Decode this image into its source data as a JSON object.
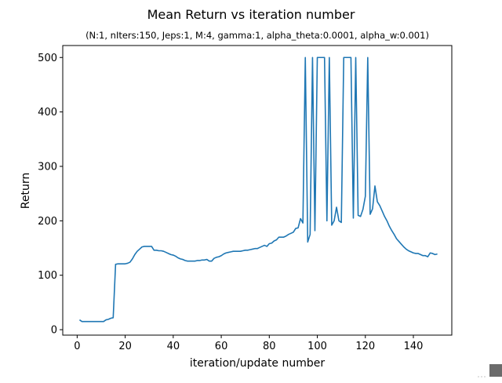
{
  "chart_data": {
    "type": "line",
    "title": "Mean Return vs iteration number",
    "subtitle": "(N:1, nIters:150, Jeps:1, M:4, gamma:1, alpha_theta:0.0001, alpha_w:0.001)",
    "xlabel": "iteration/update number",
    "ylabel": "Return",
    "xlim": [
      -6,
      156
    ],
    "ylim": [
      -10,
      522
    ],
    "xticks": [
      0,
      20,
      40,
      60,
      80,
      100,
      120,
      140
    ],
    "yticks": [
      0,
      100,
      200,
      300,
      400,
      500
    ],
    "grid": false,
    "color": "#1f77b4",
    "series": [
      {
        "x": [
          1,
          2,
          3,
          4,
          5,
          6,
          7,
          8,
          9,
          10,
          11,
          12,
          13,
          14,
          15,
          16,
          17,
          18,
          19,
          20,
          21,
          22,
          23,
          24,
          25,
          26,
          27,
          28,
          29,
          30,
          31,
          32,
          33,
          34,
          35,
          36,
          37,
          38,
          39,
          40,
          41,
          42,
          43,
          44,
          45,
          46,
          47,
          48,
          49,
          50,
          51,
          52,
          53,
          54,
          55,
          56,
          57,
          58,
          59,
          60,
          61,
          62,
          63,
          64,
          65,
          66,
          67,
          68,
          69,
          70,
          71,
          72,
          73,
          74,
          75,
          76,
          77,
          78,
          79,
          80,
          81,
          82,
          83,
          84,
          85,
          86,
          87,
          88,
          89,
          90,
          91,
          92,
          93,
          94,
          95,
          96,
          97,
          98,
          99,
          100,
          101,
          102,
          103,
          104,
          105,
          106,
          107,
          108,
          109,
          110,
          111,
          112,
          113,
          114,
          115,
          116,
          117,
          118,
          119,
          120,
          121,
          122,
          123,
          124,
          125,
          126,
          127,
          128,
          129,
          130,
          131,
          132,
          133,
          134,
          135,
          136,
          137,
          138,
          139,
          140,
          141,
          142,
          143,
          144,
          145,
          146,
          147,
          148,
          149,
          150
        ],
        "y": [
          18,
          15,
          15,
          15,
          15,
          15,
          15,
          15,
          15,
          15,
          15,
          18,
          19,
          21,
          22,
          120,
          121,
          121,
          121,
          121,
          122,
          124,
          130,
          138,
          144,
          148,
          152,
          153,
          153,
          153,
          153,
          146,
          146,
          145,
          145,
          144,
          142,
          140,
          138,
          137,
          135,
          132,
          130,
          129,
          127,
          126,
          126,
          126,
          126,
          127,
          127,
          128,
          128,
          129,
          126,
          126,
          131,
          133,
          134,
          136,
          139,
          141,
          142,
          143,
          144,
          144,
          144,
          144,
          145,
          146,
          146,
          147,
          148,
          149,
          149,
          151,
          153,
          155,
          153,
          158,
          159,
          163,
          165,
          170,
          170,
          170,
          172,
          175,
          177,
          179,
          186,
          187,
          204,
          196,
          500,
          161,
          175,
          500,
          182,
          500,
          500,
          500,
          500,
          200,
          500,
          192,
          200,
          225,
          200,
          197,
          500,
          500,
          500,
          500,
          205,
          500,
          210,
          208,
          221,
          245,
          500,
          212,
          222,
          264,
          235,
          228,
          218,
          208,
          200,
          190,
          182,
          175,
          167,
          162,
          157,
          152,
          148,
          145,
          143,
          141,
          140,
          140,
          138,
          136,
          136,
          134,
          141,
          140,
          138,
          139
        ]
      }
    ]
  }
}
